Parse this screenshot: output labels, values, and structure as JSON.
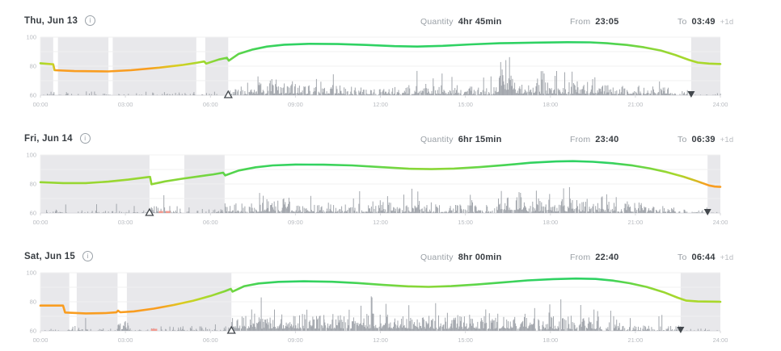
{
  "labels": {
    "quantity": "Quantity",
    "from": "From",
    "to": "To",
    "info_glyph": "i"
  },
  "colors": {
    "green": "#2fd263",
    "lime": "#a9d82b",
    "orange": "#f99d20",
    "bars": "#a3a7ad",
    "shade": "#e8e8eb",
    "grid": "#f0f0f1",
    "baseline": "#d8d9dc",
    "tick_text": "#b8bbc0",
    "label_text": "#9aa0a6",
    "value_text": "#383d42",
    "red_mark": "#f29a90",
    "marker_dark": "#43484d"
  },
  "rows": [
    {
      "date": "Thu, Jun 13",
      "quantity": "4hr 45min",
      "from": "23:05",
      "to": "03:49",
      "to_suffix": "+1d"
    },
    {
      "date": "Fri, Jun 14",
      "quantity": "6hr 15min",
      "from": "23:40",
      "to": "06:39",
      "to_suffix": "+1d"
    },
    {
      "date": "Sat, Jun 15",
      "quantity": "8hr 00min",
      "from": "22:40",
      "to": "06:44",
      "to_suffix": "+1d"
    }
  ],
  "chart_data": [
    {
      "type": "area",
      "title": "Thu, Jun 13 — sleep shading, movement bars, energy line",
      "x_ticks": [
        "00:00",
        "03:00",
        "06:00",
        "09:00",
        "12:00",
        "15:00",
        "18:00",
        "21:00",
        "24:00"
      ],
      "y_ticks": [
        100,
        80,
        60
      ],
      "ylim": [
        60,
        100
      ],
      "xlim_hours": [
        0,
        24
      ],
      "grid": true,
      "seed": 7,
      "sleep_regions": [
        [
          0,
          0.45
        ],
        [
          0.62,
          2.4
        ],
        [
          2.55,
          5.5
        ],
        [
          5.82,
          6.63
        ],
        [
          22.97,
          24
        ]
      ],
      "wake_marker_hour": 6.63,
      "bed_marker_hour": 22.97,
      "line": [
        [
          0,
          82
        ],
        [
          0.45,
          81.3
        ],
        [
          0.5,
          77.2
        ],
        [
          1.2,
          76.6
        ],
        [
          2.4,
          76.4
        ],
        [
          3.2,
          77.2
        ],
        [
          4.2,
          79
        ],
        [
          5.0,
          80.8
        ],
        [
          5.5,
          82.3
        ],
        [
          5.78,
          83.2
        ],
        [
          5.85,
          81.8
        ],
        [
          6.3,
          84.6
        ],
        [
          6.58,
          85.8
        ],
        [
          6.65,
          83.8
        ],
        [
          7.0,
          88.5
        ],
        [
          7.5,
          91.5
        ],
        [
          8.0,
          93.5
        ],
        [
          8.6,
          94.8
        ],
        [
          9.5,
          95.4
        ],
        [
          10.5,
          95.2
        ],
        [
          11.5,
          94.6
        ],
        [
          12.5,
          93.8
        ],
        [
          13.3,
          93.5
        ],
        [
          14.2,
          94.0
        ],
        [
          15.2,
          95.0
        ],
        [
          16.2,
          95.8
        ],
        [
          17.5,
          96.2
        ],
        [
          18.6,
          96.5
        ],
        [
          19.4,
          96.4
        ],
        [
          20.0,
          95.8
        ],
        [
          20.7,
          94.6
        ],
        [
          21.3,
          93.0
        ],
        [
          21.9,
          90.8
        ],
        [
          22.4,
          87.8
        ],
        [
          22.9,
          84.2
        ],
        [
          23.2,
          82.5
        ],
        [
          23.6,
          81.8
        ],
        [
          24,
          81.5
        ]
      ],
      "line_gradient": [
        [
          0,
          "#a9d82b"
        ],
        [
          0.45,
          "#c8d424"
        ],
        [
          0.55,
          "#f99d20"
        ],
        [
          3.8,
          "#f99d20"
        ],
        [
          4.8,
          "#d8cf22"
        ],
        [
          5.6,
          "#a9d82b"
        ],
        [
          6.4,
          "#79d63e"
        ],
        [
          7.6,
          "#43d356"
        ],
        [
          8.8,
          "#2fd263"
        ],
        [
          19.2,
          "#2fd263"
        ],
        [
          20.4,
          "#55d44c"
        ],
        [
          21.4,
          "#83d63a"
        ],
        [
          22.4,
          "#a0d730"
        ],
        [
          23.0,
          "#a9d82b"
        ],
        [
          24,
          "#a9d82b"
        ]
      ],
      "bar_segments": [
        [
          0.1,
          6.3,
          0.35,
          0.3,
          2.5,
          8
        ],
        [
          6.63,
          7.3,
          0.75,
          0.5,
          6,
          14
        ],
        [
          7.3,
          8.1,
          0.9,
          1,
          9,
          18
        ],
        [
          8.1,
          9.0,
          0.92,
          1,
          12,
          33
        ],
        [
          9.0,
          10.6,
          0.85,
          0.8,
          7,
          16
        ],
        [
          10.6,
          13.2,
          0.8,
          0.6,
          6,
          14
        ],
        [
          13.2,
          14.2,
          0.85,
          0.8,
          8,
          17
        ],
        [
          14.2,
          16.05,
          0.8,
          0.6,
          6,
          13
        ],
        [
          16.05,
          16.75,
          0.95,
          2,
          14,
          33
        ],
        [
          16.75,
          19.6,
          0.9,
          1,
          9,
          18
        ],
        [
          19.6,
          22.3,
          0.85,
          0.8,
          7,
          15
        ],
        [
          22.3,
          23.0,
          0.5,
          0.4,
          3,
          6
        ],
        [
          23.0,
          24,
          0.18,
          0.3,
          1.5,
          3
        ]
      ],
      "red_marks": []
    },
    {
      "type": "area",
      "title": "Fri, Jun 14 — sleep shading, movement bars, energy line",
      "x_ticks": [
        "00:00",
        "03:00",
        "06:00",
        "09:00",
        "12:00",
        "15:00",
        "18:00",
        "21:00",
        "24:00"
      ],
      "y_ticks": [
        100,
        80,
        60
      ],
      "ylim": [
        60,
        100
      ],
      "xlim_hours": [
        0,
        24
      ],
      "grid": true,
      "seed": 13,
      "sleep_regions": [
        [
          0,
          3.85
        ],
        [
          5.08,
          6.5
        ],
        [
          23.55,
          24
        ]
      ],
      "wake_marker_hour": 3.85,
      "bed_marker_hour": 23.55,
      "line": [
        [
          0,
          81.2
        ],
        [
          0.8,
          80.6
        ],
        [
          1.6,
          80.6
        ],
        [
          2.4,
          81.6
        ],
        [
          3.1,
          83.0
        ],
        [
          3.8,
          84.8
        ],
        [
          3.87,
          84.9
        ],
        [
          3.92,
          79.8
        ],
        [
          4.4,
          81.8
        ],
        [
          5.0,
          83.6
        ],
        [
          5.6,
          85.2
        ],
        [
          6.1,
          86.6
        ],
        [
          6.45,
          87.8
        ],
        [
          6.52,
          85.9
        ],
        [
          7.0,
          89.3
        ],
        [
          7.6,
          91.5
        ],
        [
          8.2,
          92.8
        ],
        [
          9.0,
          93.4
        ],
        [
          10.0,
          93.3
        ],
        [
          11.0,
          92.8
        ],
        [
          12.0,
          91.6
        ],
        [
          13.0,
          90.5
        ],
        [
          13.8,
          90.2
        ],
        [
          14.6,
          90.6
        ],
        [
          15.5,
          91.6
        ],
        [
          16.4,
          93.0
        ],
        [
          17.3,
          94.6
        ],
        [
          18.2,
          95.5
        ],
        [
          18.8,
          95.7
        ],
        [
          19.5,
          95.3
        ],
        [
          20.2,
          94.3
        ],
        [
          20.9,
          92.7
        ],
        [
          21.5,
          90.8
        ],
        [
          22.1,
          88.2
        ],
        [
          22.7,
          85.0
        ],
        [
          23.2,
          81.8
        ],
        [
          23.6,
          79.0
        ],
        [
          23.8,
          78.2
        ],
        [
          24,
          78.0
        ]
      ],
      "line_gradient": [
        [
          0,
          "#95d633"
        ],
        [
          3.0,
          "#9bd731"
        ],
        [
          5.5,
          "#7ed63c"
        ],
        [
          6.8,
          "#54d44d"
        ],
        [
          8.0,
          "#39d35b"
        ],
        [
          9.5,
          "#2fd263"
        ],
        [
          11.0,
          "#44d355"
        ],
        [
          12.3,
          "#6fd643"
        ],
        [
          13.3,
          "#8ad737"
        ],
        [
          14.3,
          "#8ad737"
        ],
        [
          15.3,
          "#6bd644"
        ],
        [
          16.3,
          "#49d452"
        ],
        [
          17.3,
          "#33d25f"
        ],
        [
          18.0,
          "#2fd263"
        ],
        [
          20.0,
          "#2fd263"
        ],
        [
          21.0,
          "#5dd449"
        ],
        [
          21.8,
          "#8ad737"
        ],
        [
          22.5,
          "#a9d82b"
        ],
        [
          23.1,
          "#d2bc23"
        ],
        [
          23.5,
          "#f99d20"
        ],
        [
          24,
          "#f99d20"
        ]
      ],
      "bar_segments": [
        [
          0.15,
          3.85,
          0.3,
          0.3,
          2,
          7
        ],
        [
          3.85,
          4.95,
          0.55,
          0.5,
          5,
          13
        ],
        [
          5.0,
          6.45,
          0.4,
          0.3,
          3,
          11
        ],
        [
          6.5,
          7.9,
          0.85,
          0.8,
          7,
          15
        ],
        [
          7.9,
          8.8,
          0.92,
          1,
          12,
          33
        ],
        [
          8.8,
          11.2,
          0.85,
          0.7,
          6,
          13
        ],
        [
          11.2,
          13.6,
          0.85,
          0.8,
          8,
          18
        ],
        [
          13.6,
          16.1,
          0.8,
          0.6,
          6,
          14
        ],
        [
          16.1,
          17.1,
          0.95,
          2,
          16,
          33
        ],
        [
          17.1,
          19.4,
          0.9,
          1,
          10,
          20
        ],
        [
          19.4,
          21.2,
          0.85,
          0.8,
          8,
          16
        ],
        [
          21.2,
          22.6,
          0.7,
          0.5,
          5,
          12
        ],
        [
          22.6,
          23.55,
          0.5,
          0.4,
          4,
          14
        ],
        [
          23.55,
          24,
          0.2,
          0.3,
          1.5,
          3
        ]
      ],
      "red_marks": [
        [
          4.18,
          4.33
        ],
        [
          4.42,
          4.58
        ]
      ]
    },
    {
      "type": "area",
      "title": "Sat, Jun 15 — sleep shading, movement bars, energy line",
      "x_ticks": [
        "00:00",
        "03:00",
        "06:00",
        "09:00",
        "12:00",
        "15:00",
        "18:00",
        "21:00",
        "24:00"
      ],
      "y_ticks": [
        100,
        80,
        60
      ],
      "ylim": [
        60,
        100
      ],
      "xlim_hours": [
        0,
        24
      ],
      "grid": true,
      "seed": 21,
      "sleep_regions": [
        [
          0,
          1.02
        ],
        [
          1.28,
          2.72
        ],
        [
          3.05,
          6.74
        ],
        [
          22.6,
          24
        ]
      ],
      "wake_marker_hour": 6.74,
      "bed_marker_hour": 22.6,
      "line": [
        [
          0,
          77.4
        ],
        [
          0.8,
          77.4
        ],
        [
          0.87,
          72.6
        ],
        [
          1.6,
          72.0
        ],
        [
          2.3,
          72.2
        ],
        [
          2.68,
          72.7
        ],
        [
          2.74,
          73.9
        ],
        [
          2.82,
          72.8
        ],
        [
          3.3,
          73.4
        ],
        [
          4.0,
          75.3
        ],
        [
          4.7,
          77.8
        ],
        [
          5.4,
          80.8
        ],
        [
          6.0,
          84.0
        ],
        [
          6.5,
          87.2
        ],
        [
          6.72,
          88.9
        ],
        [
          6.78,
          87.0
        ],
        [
          7.2,
          90.8
        ],
        [
          7.7,
          92.6
        ],
        [
          8.4,
          93.7
        ],
        [
          9.3,
          94.1
        ],
        [
          10.3,
          93.8
        ],
        [
          11.2,
          92.9
        ],
        [
          12.1,
          91.6
        ],
        [
          13.0,
          90.6
        ],
        [
          13.7,
          90.3
        ],
        [
          14.5,
          90.8
        ],
        [
          15.4,
          91.9
        ],
        [
          16.3,
          93.3
        ],
        [
          17.2,
          94.7
        ],
        [
          18.1,
          95.6
        ],
        [
          18.9,
          96.0
        ],
        [
          19.6,
          95.7
        ],
        [
          20.2,
          94.6
        ],
        [
          20.8,
          92.8
        ],
        [
          21.4,
          90.2
        ],
        [
          22.0,
          86.6
        ],
        [
          22.5,
          82.8
        ],
        [
          22.8,
          80.8
        ],
        [
          23.2,
          80.2
        ],
        [
          24,
          80.0
        ]
      ],
      "line_gradient": [
        [
          0,
          "#f99d20"
        ],
        [
          4.2,
          "#f99d20"
        ],
        [
          5.0,
          "#ddcb21"
        ],
        [
          5.7,
          "#b3d829"
        ],
        [
          6.4,
          "#8cd736"
        ],
        [
          7.1,
          "#5cd449"
        ],
        [
          7.9,
          "#3bd35a"
        ],
        [
          8.8,
          "#2fd263"
        ],
        [
          10.8,
          "#3ad35b"
        ],
        [
          12.0,
          "#64d646"
        ],
        [
          13.0,
          "#86d738"
        ],
        [
          14.0,
          "#86d738"
        ],
        [
          15.2,
          "#62d647"
        ],
        [
          16.4,
          "#41d357"
        ],
        [
          17.4,
          "#30d262"
        ],
        [
          19.8,
          "#2fd263"
        ],
        [
          20.8,
          "#62d647"
        ],
        [
          21.6,
          "#8ed735"
        ],
        [
          22.3,
          "#a4d72e"
        ],
        [
          22.8,
          "#a9d82b"
        ],
        [
          24,
          "#a9d82b"
        ]
      ],
      "bar_segments": [
        [
          0.1,
          1.0,
          0.3,
          0.3,
          1.5,
          4
        ],
        [
          1.0,
          1.45,
          0.5,
          0.5,
          3,
          7
        ],
        [
          1.45,
          2.65,
          0.3,
          0.3,
          2,
          12
        ],
        [
          2.7,
          3.1,
          0.9,
          1,
          8,
          18
        ],
        [
          3.1,
          4.6,
          0.4,
          0.3,
          2.5,
          7
        ],
        [
          4.6,
          6.65,
          0.5,
          0.4,
          3.5,
          9
        ],
        [
          6.74,
          10.0,
          0.97,
          1.5,
          12,
          26
        ],
        [
          10.0,
          13.0,
          0.97,
          1.5,
          12,
          24
        ],
        [
          13.0,
          16.0,
          0.95,
          1.2,
          11,
          26
        ],
        [
          16.0,
          17.6,
          0.9,
          1.5,
          12,
          27
        ],
        [
          17.6,
          19.7,
          0.88,
          1,
          10,
          22
        ],
        [
          19.7,
          20.7,
          0.7,
          0.6,
          6,
          14
        ],
        [
          20.7,
          22.6,
          0.6,
          0.4,
          4,
          12
        ],
        [
          22.6,
          24,
          0.15,
          0.3,
          1.5,
          3
        ]
      ],
      "red_marks": [
        [
          3.9,
          4.12
        ]
      ]
    }
  ]
}
